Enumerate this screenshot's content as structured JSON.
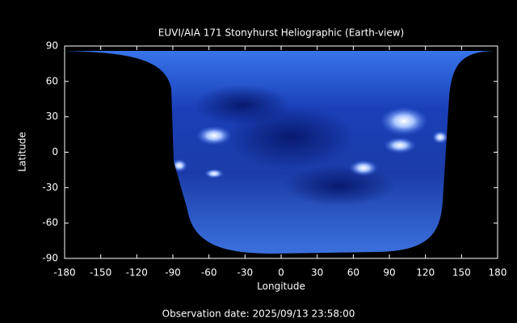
{
  "chart_data": {
    "type": "image",
    "title": "EUVI/AIA 171 Stonyhurst Heliographic (Earth-view)",
    "x_label": "Longitude",
    "y_label": "Latitude",
    "xlim": [
      -180,
      180
    ],
    "ylim": [
      -90,
      90
    ],
    "xticks": [
      -180,
      -150,
      -120,
      -90,
      -60,
      -30,
      0,
      30,
      60,
      90,
      120,
      150,
      180
    ],
    "yticks": [
      -90,
      -60,
      -30,
      0,
      30,
      60,
      90
    ],
    "footer": "Observation date: 2025/09/13 23:58:00"
  }
}
